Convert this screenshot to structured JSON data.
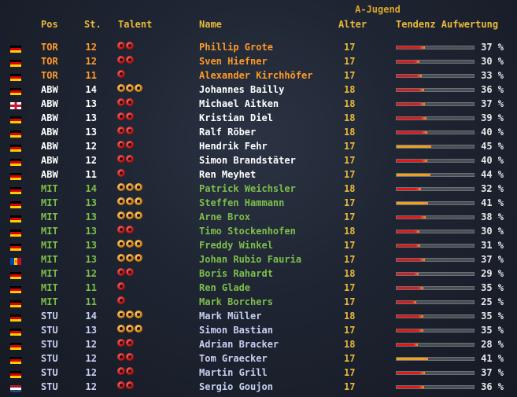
{
  "title": "A-Jugend",
  "headers": {
    "pos": "Pos",
    "st": "St.",
    "talent": "Talent",
    "name": "Name",
    "alter": "Alter",
    "tendenz": "Tendenz Aufwertung"
  },
  "colors": {
    "tor": "#ff9a2a",
    "abw": "#ffffff",
    "mit": "#7dbf4a",
    "stu": "#c7d0f3",
    "bar_red": "#e01818",
    "bar_orange": "#f0a020"
  },
  "players": [
    {
      "flag": "germany",
      "pos": "TOR",
      "st": "12",
      "talent": 2,
      "talent_color": "red",
      "name": "Phillip Grote",
      "alter": "17",
      "pct": "37 %",
      "tendenz": 37
    },
    {
      "flag": "germany",
      "pos": "TOR",
      "st": "12",
      "talent": 2,
      "talent_color": "red",
      "name": "Sven Hiefner",
      "alter": "17",
      "pct": "30 %",
      "tendenz": 30
    },
    {
      "flag": "germany",
      "pos": "TOR",
      "st": "11",
      "talent": 1,
      "talent_color": "red",
      "name": "Alexander Kirchhöfer",
      "alter": "17",
      "pct": "33 %",
      "tendenz": 33
    },
    {
      "flag": "germany",
      "pos": "ABW",
      "st": "14",
      "talent": 3,
      "talent_color": "gold",
      "name": "Johannes Bailly",
      "alter": "18",
      "pct": "36 %",
      "tendenz": 36
    },
    {
      "flag": "england",
      "pos": "ABW",
      "st": "13",
      "talent": 2,
      "talent_color": "red",
      "name": "Michael Aitken",
      "alter": "18",
      "pct": "37 %",
      "tendenz": 37
    },
    {
      "flag": "germany",
      "pos": "ABW",
      "st": "13",
      "talent": 2,
      "talent_color": "red",
      "name": "Kristian Diel",
      "alter": "18",
      "pct": "39 %",
      "tendenz": 39
    },
    {
      "flag": "germany",
      "pos": "ABW",
      "st": "13",
      "talent": 2,
      "talent_color": "red",
      "name": "Ralf Röber",
      "alter": "18",
      "pct": "40 %",
      "tendenz": 40
    },
    {
      "flag": "germany",
      "pos": "ABW",
      "st": "12",
      "talent": 2,
      "talent_color": "red",
      "name": "Hendrik Fehr",
      "alter": "17",
      "pct": "45 %",
      "tendenz": 45
    },
    {
      "flag": "germany",
      "pos": "ABW",
      "st": "12",
      "talent": 2,
      "talent_color": "red",
      "name": "Simon Brandstäter",
      "alter": "17",
      "pct": "40 %",
      "tendenz": 40
    },
    {
      "flag": "germany",
      "pos": "ABW",
      "st": "11",
      "talent": 1,
      "talent_color": "red",
      "name": "Ren  Meyhet",
      "alter": "17",
      "pct": "44 %",
      "tendenz": 44
    },
    {
      "flag": "germany",
      "pos": "MIT",
      "st": "14",
      "talent": 3,
      "talent_color": "gold",
      "name": "Patrick Weichsler",
      "alter": "18",
      "pct": "32 %",
      "tendenz": 32
    },
    {
      "flag": "germany",
      "pos": "MIT",
      "st": "13",
      "talent": 3,
      "talent_color": "gold",
      "name": "Steffen Hammann",
      "alter": "17",
      "pct": "41 %",
      "tendenz": 41
    },
    {
      "flag": "germany",
      "pos": "MIT",
      "st": "13",
      "talent": 3,
      "talent_color": "gold",
      "name": "Arne Brox",
      "alter": "17",
      "pct": "38 %",
      "tendenz": 38
    },
    {
      "flag": "germany",
      "pos": "MIT",
      "st": "13",
      "talent": 2,
      "talent_color": "red",
      "name": "Timo Stockenhofen",
      "alter": "18",
      "pct": "30 %",
      "tendenz": 30
    },
    {
      "flag": "germany",
      "pos": "MIT",
      "st": "13",
      "talent": 3,
      "talent_color": "gold",
      "name": "Freddy Winkel",
      "alter": "17",
      "pct": "31 %",
      "tendenz": 31
    },
    {
      "flag": "moldova",
      "pos": "MIT",
      "st": "13",
      "talent": 3,
      "talent_color": "gold",
      "name": "Johan Rubio Fauria",
      "alter": "17",
      "pct": "37 %",
      "tendenz": 37
    },
    {
      "flag": "germany",
      "pos": "MIT",
      "st": "12",
      "talent": 2,
      "talent_color": "red",
      "name": "Boris Rahardt",
      "alter": "18",
      "pct": "29 %",
      "tendenz": 29
    },
    {
      "flag": "germany",
      "pos": "MIT",
      "st": "11",
      "talent": 1,
      "talent_color": "red",
      "name": "Ren  Glade",
      "alter": "17",
      "pct": "35 %",
      "tendenz": 35
    },
    {
      "flag": "germany",
      "pos": "MIT",
      "st": "11",
      "talent": 1,
      "talent_color": "red",
      "name": "Mark Borchers",
      "alter": "17",
      "pct": "25 %",
      "tendenz": 25
    },
    {
      "flag": "germany",
      "pos": "STU",
      "st": "14",
      "talent": 3,
      "talent_color": "gold",
      "name": "Mark Müller",
      "alter": "18",
      "pct": "35 %",
      "tendenz": 35
    },
    {
      "flag": "germany",
      "pos": "STU",
      "st": "13",
      "talent": 3,
      "talent_color": "gold",
      "name": "Simon Bastian",
      "alter": "17",
      "pct": "35 %",
      "tendenz": 35
    },
    {
      "flag": "germany",
      "pos": "STU",
      "st": "12",
      "talent": 2,
      "talent_color": "red",
      "name": "Adrian Bracker",
      "alter": "18",
      "pct": "28 %",
      "tendenz": 28
    },
    {
      "flag": "germany",
      "pos": "STU",
      "st": "12",
      "talent": 2,
      "talent_color": "red",
      "name": "Tom Graecker",
      "alter": "17",
      "pct": "41 %",
      "tendenz": 41
    },
    {
      "flag": "germany",
      "pos": "STU",
      "st": "12",
      "talent": 2,
      "talent_color": "red",
      "name": "Martin Grill",
      "alter": "17",
      "pct": "37 %",
      "tendenz": 37
    },
    {
      "flag": "netherlands",
      "pos": "STU",
      "st": "12",
      "talent": 2,
      "talent_color": "red",
      "name": "Sergio Goujon",
      "alter": "17",
      "pct": "36 %",
      "tendenz": 36
    }
  ]
}
